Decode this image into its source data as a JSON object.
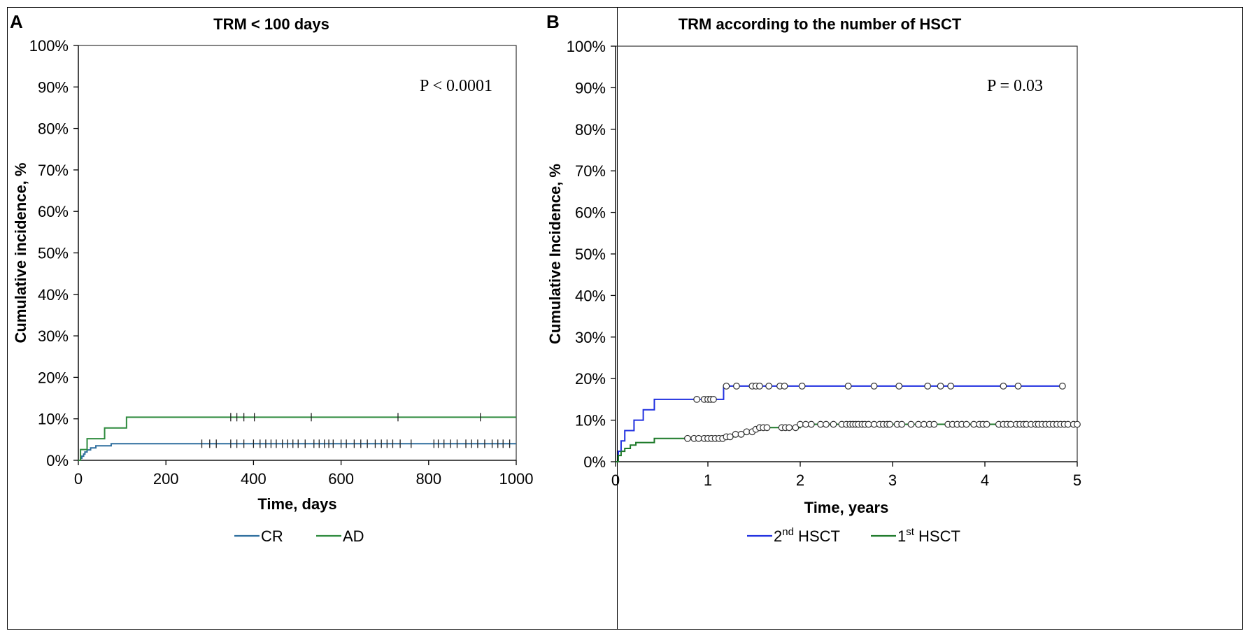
{
  "chart_data": [
    {
      "panel": "A",
      "type": "line",
      "title": "TRM < 100 days",
      "xlabel": "Time, days",
      "ylabel": "Cumulative incidence, %",
      "xlim": [
        0,
        1000
      ],
      "ylim": [
        0,
        100
      ],
      "xticks": [
        0,
        200,
        400,
        600,
        800,
        1000
      ],
      "xtick_labels": [
        "0",
        "200",
        "400",
        "600",
        "800",
        "1000"
      ],
      "yticks": [
        0,
        10,
        20,
        30,
        40,
        50,
        60,
        70,
        80,
        90,
        100
      ],
      "ytick_labels": [
        "0%",
        "10%",
        "20%",
        "30%",
        "40%",
        "50%",
        "60%",
        "70%",
        "80%",
        "90%",
        "100%"
      ],
      "annotation": "P < 0.0001",
      "censor_style": "tick",
      "series": [
        {
          "name": "CR",
          "color": "#2e6e9e",
          "steps": [
            [
              0,
              0
            ],
            [
              5,
              0.5
            ],
            [
              8,
              1
            ],
            [
              12,
              1.5
            ],
            [
              15,
              2
            ],
            [
              20,
              2.5
            ],
            [
              28,
              3
            ],
            [
              40,
              3.5
            ],
            [
              75,
              4
            ],
            [
              1000,
              4
            ]
          ],
          "censored": [
            282,
            300,
            315,
            348,
            362,
            378,
            400,
            415,
            428,
            440,
            452,
            466,
            478,
            490,
            502,
            518,
            538,
            550,
            562,
            572,
            582,
            600,
            612,
            630,
            645,
            660,
            678,
            692,
            705,
            718,
            735,
            760,
            812,
            822,
            835,
            850,
            865,
            885,
            898,
            912,
            928,
            945,
            958,
            970,
            985
          ]
        },
        {
          "name": "AD",
          "color": "#2e8b3e",
          "steps": [
            [
              0,
              0
            ],
            [
              5,
              2.6
            ],
            [
              20,
              5.2
            ],
            [
              60,
              7.8
            ],
            [
              110,
              10.4
            ],
            [
              1000,
              10.4
            ]
          ],
          "censored": [
            348,
            362,
            378,
            402,
            532,
            730,
            918
          ]
        }
      ]
    },
    {
      "panel": "B",
      "type": "line",
      "title": "TRM according to the number of HSCT",
      "xlabel": "Time,  years",
      "ylabel": "Cumulative Incidence, %",
      "xlim": [
        0,
        5
      ],
      "ylim": [
        0,
        100
      ],
      "xticks": [
        0,
        1,
        2,
        3,
        4,
        5
      ],
      "xtick_labels": [
        "0",
        "1",
        "2",
        "3",
        "4",
        "5"
      ],
      "yticks": [
        0,
        10,
        20,
        30,
        40,
        50,
        60,
        70,
        80,
        90,
        100
      ],
      "ytick_labels": [
        "0%",
        "10%",
        "20%",
        "30%",
        "40%",
        "50%",
        "60%",
        "70%",
        "80%",
        "90%",
        "100%"
      ],
      "annotation": "P = 0.03",
      "censor_style": "circle",
      "series": [
        {
          "name": "2nd HSCT",
          "color": "#2030e0",
          "steps": [
            [
              0,
              0
            ],
            [
              0.03,
              2.5
            ],
            [
              0.06,
              5
            ],
            [
              0.1,
              7.5
            ],
            [
              0.2,
              10
            ],
            [
              0.3,
              12.5
            ],
            [
              0.42,
              15
            ],
            [
              1.17,
              18.2
            ],
            [
              4.84,
              18.2
            ]
          ],
          "censored": [
            0.88,
            0.96,
            1.0,
            1.03,
            1.06,
            1.2,
            1.31,
            1.48,
            1.52,
            1.56,
            1.66,
            1.78,
            1.83,
            2.02,
            2.52,
            2.8,
            3.07,
            3.38,
            3.52,
            3.63,
            4.2,
            4.36,
            4.84
          ]
        },
        {
          "name": "1st HSCT",
          "color": "#1e7a2a",
          "steps": [
            [
              0,
              0
            ],
            [
              0.03,
              1.5
            ],
            [
              0.06,
              2.5
            ],
            [
              0.1,
              3.2
            ],
            [
              0.16,
              4.0
            ],
            [
              0.22,
              4.6
            ],
            [
              0.42,
              5.6
            ],
            [
              1.2,
              6.0
            ],
            [
              1.3,
              6.6
            ],
            [
              1.42,
              7.2
            ],
            [
              1.5,
              7.8
            ],
            [
              1.56,
              8.2
            ],
            [
              2.0,
              9.0
            ],
            [
              5.0,
              9.0
            ]
          ],
          "censored": [
            0.78,
            0.85,
            0.9,
            0.96,
            1.0,
            1.04,
            1.08,
            1.12,
            1.16,
            1.2,
            1.24,
            1.3,
            1.36,
            1.42,
            1.48,
            1.52,
            1.56,
            1.6,
            1.64,
            1.8,
            1.84,
            1.88,
            1.95,
            2.0,
            2.06,
            2.12,
            2.22,
            2.28,
            2.36,
            2.45,
            2.5,
            2.54,
            2.57,
            2.6,
            2.63,
            2.67,
            2.7,
            2.74,
            2.8,
            2.86,
            2.9,
            2.94,
            2.97,
            3.05,
            3.1,
            3.2,
            3.28,
            3.34,
            3.4,
            3.45,
            3.6,
            3.65,
            3.7,
            3.75,
            3.8,
            3.88,
            3.94,
            3.98,
            4.02,
            4.15,
            4.2,
            4.24,
            4.28,
            4.34,
            4.38,
            4.42,
            4.45,
            4.5,
            4.55,
            4.58,
            4.62,
            4.66,
            4.7,
            4.74,
            4.78,
            4.82,
            4.86,
            4.9,
            4.96,
            5.0
          ]
        }
      ]
    }
  ]
}
